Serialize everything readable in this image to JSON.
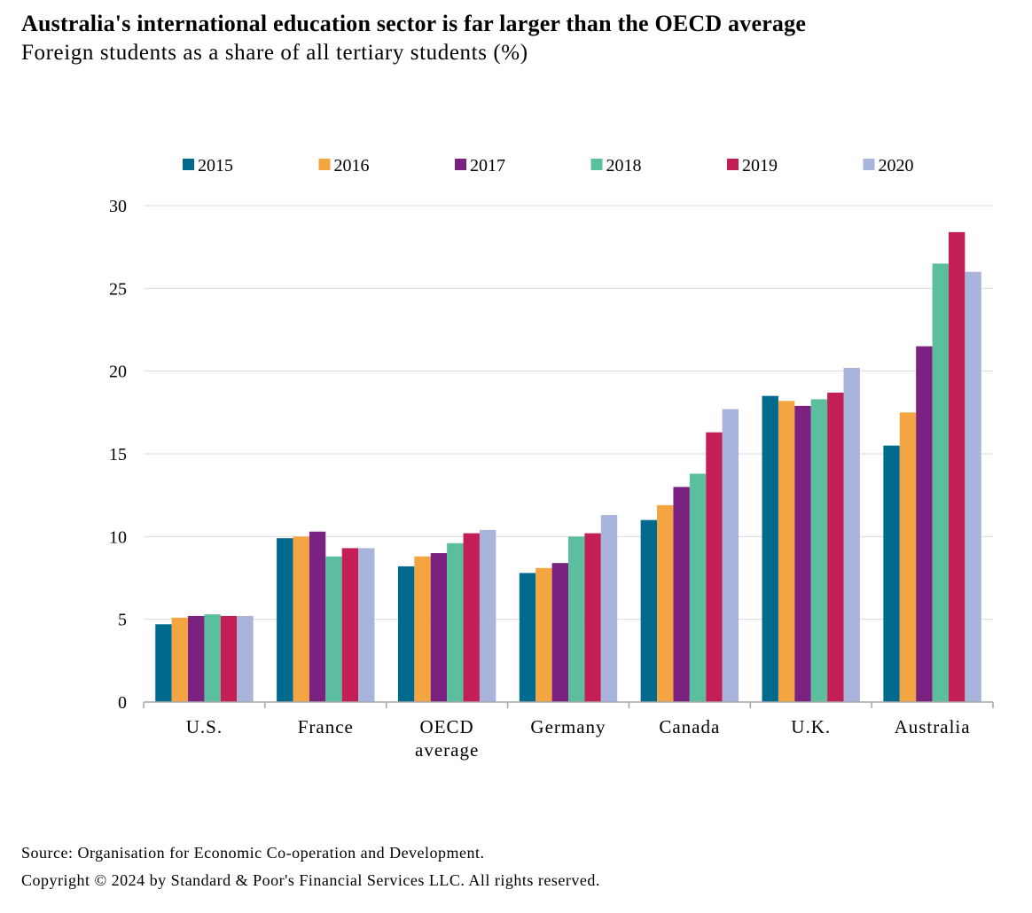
{
  "title": "Australia's international education sector is far larger than the OECD average",
  "subtitle": "Foreign students as a share of all tertiary students (%)",
  "source": "Source: Organisation for Economic Co-operation and Development.",
  "copyright": "Copyright © 2024 by Standard & Poor's Financial Services LLC. All rights reserved.",
  "chart_data": {
    "type": "bar",
    "title": "Australia's international education sector is far larger than the OECD average",
    "subtitle": "Foreign students as a share of all tertiary students (%)",
    "categories": [
      [
        "U.S."
      ],
      [
        "France"
      ],
      [
        "OECD",
        "average"
      ],
      [
        "Germany"
      ],
      [
        "Canada"
      ],
      [
        "U.K."
      ],
      [
        "Australia"
      ]
    ],
    "ylim": [
      0,
      30
    ],
    "yticks": [
      0,
      5,
      10,
      15,
      20,
      25,
      30
    ],
    "grid": true,
    "legend_position": "top",
    "series": [
      {
        "name": "2015",
        "color": "#006a8e",
        "values": [
          4.7,
          9.9,
          8.2,
          7.8,
          11.0,
          18.5,
          15.5
        ]
      },
      {
        "name": "2016",
        "color": "#f2a541",
        "values": [
          5.1,
          10.0,
          8.8,
          8.1,
          11.9,
          18.2,
          17.5
        ]
      },
      {
        "name": "2017",
        "color": "#7b2180",
        "values": [
          5.2,
          10.3,
          9.0,
          8.4,
          13.0,
          17.9,
          21.5
        ]
      },
      {
        "name": "2018",
        "color": "#5bbf9f",
        "values": [
          5.3,
          8.8,
          9.6,
          10.0,
          13.8,
          18.3,
          26.5
        ]
      },
      {
        "name": "2019",
        "color": "#c41f54",
        "values": [
          5.2,
          9.3,
          10.2,
          10.2,
          16.3,
          18.7,
          28.4
        ]
      },
      {
        "name": "2020",
        "color": "#a9b4dd",
        "values": [
          5.2,
          9.3,
          10.4,
          11.3,
          17.7,
          20.2,
          26.0
        ]
      }
    ]
  }
}
